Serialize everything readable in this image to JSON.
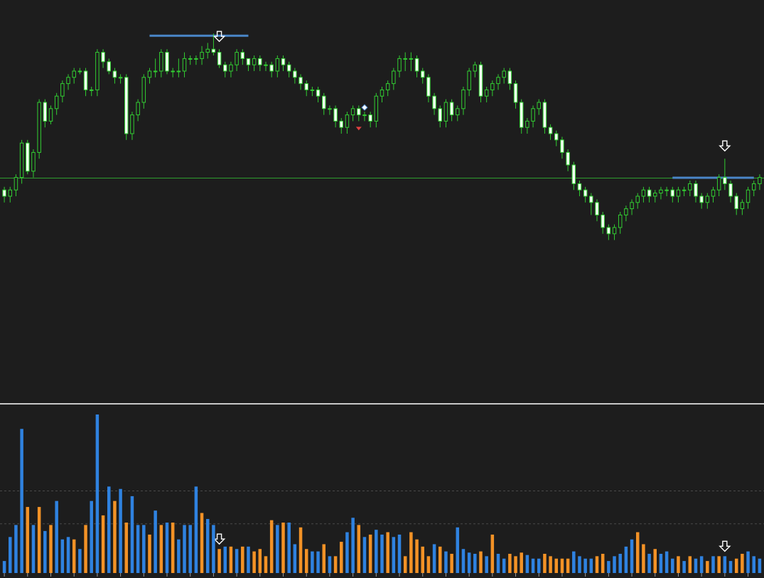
{
  "colors": {
    "background": "#1d1d1d",
    "separator": "#c8c8c8",
    "candle_outline": "#32cd32",
    "candle_bull_fill": "#1d1d1d",
    "candle_bear_fill": "#f2fff2",
    "wick": "#32cd32",
    "price_line": "#2e9e2e",
    "resistance": "#4a86c8",
    "marker": "#ffffff",
    "volume_up": "#2f82e0",
    "volume_down": "#f39226",
    "volume_grid": "#4a4a4a"
  },
  "icons": {
    "top_markers": "down-arrow-icon",
    "volume_markers": "down-arrow-icon",
    "order_marker_buy": "diamond-icon",
    "order_marker_sell": "red-triangle-icon"
  },
  "chart_data": [
    {
      "type": "candlestick",
      "title": "",
      "xlabel": "",
      "ylabel": "",
      "ylim": [
        0,
        100
      ],
      "grid": false,
      "price_line_level": 45.8,
      "resistance_levels": [
        {
          "start_index": 25,
          "end_index": 42,
          "level": 91.3
        },
        {
          "start_index": 115,
          "end_index": 129,
          "level": 45.9
        }
      ],
      "marker_indices": [
        37,
        124
      ],
      "open": [
        42,
        40,
        42,
        46,
        57,
        48,
        54,
        70,
        64,
        68,
        72,
        76,
        78,
        80,
        80,
        74,
        74,
        86,
        83,
        80,
        78,
        78,
        60,
        66,
        70,
        78,
        80,
        80,
        86,
        80,
        80,
        80,
        84,
        84,
        84,
        86,
        87,
        86,
        82,
        80,
        82,
        86,
        84,
        82,
        84,
        82,
        82,
        80,
        84,
        82,
        80,
        78,
        76,
        74,
        74,
        72,
        68,
        68,
        64,
        62,
        66,
        68,
        66,
        66,
        64,
        72,
        74,
        76,
        80,
        84,
        84,
        84,
        80,
        78,
        72,
        68,
        64,
        70,
        66,
        68,
        74,
        80,
        82,
        72,
        74,
        76,
        78,
        80,
        76,
        70,
        62,
        64,
        68,
        70,
        62,
        60,
        58,
        54,
        50,
        44,
        42,
        40,
        38,
        34,
        30,
        28,
        30,
        34,
        36,
        38,
        40,
        42,
        40,
        41,
        42,
        42,
        40,
        42,
        42,
        44,
        40,
        38,
        40,
        42,
        46,
        44,
        40,
        36,
        38,
        42,
        44
      ],
      "close": [
        40,
        42,
        46,
        57,
        48,
        54,
        70,
        64,
        68,
        72,
        76,
        78,
        80,
        80,
        74,
        74,
        86,
        83,
        80,
        78,
        78,
        60,
        66,
        70,
        78,
        80,
        80,
        86,
        80,
        80,
        80,
        84,
        84,
        84,
        86,
        87,
        86,
        82,
        80,
        82,
        86,
        84,
        82,
        84,
        82,
        82,
        80,
        84,
        82,
        80,
        78,
        76,
        74,
        74,
        72,
        68,
        68,
        64,
        62,
        66,
        68,
        66,
        66,
        64,
        72,
        74,
        76,
        80,
        84,
        84,
        84,
        80,
        78,
        72,
        68,
        64,
        70,
        66,
        68,
        74,
        80,
        82,
        72,
        74,
        76,
        78,
        80,
        76,
        70,
        62,
        64,
        68,
        70,
        62,
        60,
        58,
        54,
        50,
        44,
        42,
        40,
        38,
        34,
        30,
        28,
        30,
        34,
        36,
        38,
        40,
        42,
        40,
        41,
        42,
        42,
        40,
        42,
        42,
        44,
        40,
        38,
        40,
        42,
        46,
        44,
        40,
        36,
        38,
        42,
        44,
        46
      ],
      "high": [
        43,
        43,
        47,
        58,
        58,
        55,
        71,
        71,
        69,
        73,
        77,
        79,
        81,
        81,
        81,
        75,
        87,
        87,
        84,
        81,
        79,
        79,
        67,
        71,
        79,
        81,
        84,
        87,
        87,
        81,
        84,
        86,
        85,
        85,
        88,
        89,
        92,
        87,
        83,
        83,
        87,
        87,
        83,
        85,
        85,
        83,
        83,
        85,
        85,
        83,
        81,
        79,
        77,
        75,
        75,
        73,
        69,
        69,
        65,
        67,
        69,
        69,
        67,
        67,
        73,
        75,
        77,
        81,
        85,
        86,
        86,
        85,
        81,
        79,
        73,
        69,
        71,
        71,
        69,
        75,
        81,
        83,
        83,
        75,
        77,
        79,
        81,
        81,
        77,
        71,
        65,
        69,
        71,
        71,
        63,
        61,
        59,
        55,
        51,
        45,
        43,
        41,
        39,
        35,
        31,
        31,
        35,
        37,
        39,
        41,
        43,
        43,
        42,
        43,
        43,
        43,
        43,
        43,
        45,
        45,
        41,
        41,
        43,
        47,
        52,
        45,
        41,
        39,
        43,
        45,
        47
      ],
      "low": [
        38,
        38,
        40,
        44,
        47,
        46,
        52,
        62,
        63,
        66,
        70,
        74,
        76,
        79,
        72,
        72,
        72,
        81,
        79,
        76,
        76,
        58,
        58,
        64,
        68,
        76,
        78,
        78,
        79,
        78,
        78,
        78,
        82,
        82,
        82,
        84,
        85,
        81,
        78,
        78,
        80,
        82,
        80,
        80,
        80,
        80,
        78,
        78,
        80,
        78,
        76,
        74,
        72,
        72,
        70,
        66,
        66,
        62,
        60,
        60,
        64,
        64,
        64,
        62,
        62,
        70,
        72,
        74,
        78,
        80,
        80,
        78,
        76,
        70,
        66,
        62,
        62,
        64,
        64,
        66,
        72,
        78,
        70,
        70,
        72,
        74,
        76,
        74,
        68,
        60,
        60,
        62,
        66,
        60,
        58,
        56,
        52,
        48,
        42,
        40,
        38,
        34,
        32,
        28,
        26,
        26,
        28,
        32,
        34,
        36,
        38,
        38,
        38,
        39,
        40,
        38,
        38,
        40,
        40,
        38,
        36,
        36,
        38,
        40,
        42,
        38,
        34,
        34,
        36,
        40,
        42
      ],
      "volume": [
        10,
        30,
        40,
        120,
        55,
        40,
        55,
        35,
        40,
        60,
        28,
        30,
        28,
        20,
        40,
        60,
        132,
        48,
        72,
        60,
        70,
        42,
        64,
        40,
        40,
        32,
        52,
        40,
        42,
        42,
        28,
        40,
        40,
        72,
        50,
        45,
        40,
        20,
        22,
        22,
        20,
        22,
        22,
        18,
        20,
        14,
        44,
        40,
        42,
        42,
        24,
        38,
        20,
        18,
        18,
        24,
        14,
        14,
        26,
        34,
        46,
        40,
        30,
        32,
        36,
        32,
        34,
        30,
        32,
        14,
        34,
        28,
        22,
        14,
        24,
        22,
        18,
        16,
        38,
        20,
        17,
        16,
        18,
        14,
        32,
        16,
        12,
        16,
        14,
        17,
        15,
        12,
        12,
        16,
        14,
        12,
        12,
        12,
        18,
        14,
        12,
        12,
        14,
        16,
        10,
        14,
        16,
        22,
        28,
        34,
        24,
        16,
        20,
        16,
        18,
        12,
        14,
        10,
        14,
        12,
        14,
        10,
        14,
        14,
        14,
        10,
        12,
        16,
        18,
        14,
        12
      ],
      "volume_direction": [
        "up",
        "up",
        "up",
        "up",
        "down",
        "up",
        "down",
        "up",
        "down",
        "up",
        "up",
        "up",
        "down",
        "up",
        "down",
        "up",
        "up",
        "down",
        "up",
        "down",
        "up",
        "down",
        "up",
        "up",
        "up",
        "down",
        "up",
        "down",
        "up",
        "down",
        "up",
        "up",
        "up",
        "up",
        "down",
        "up",
        "up",
        "down",
        "up",
        "down",
        "up",
        "down",
        "up",
        "down",
        "down",
        "down",
        "down",
        "up",
        "down",
        "up",
        "up",
        "down",
        "down",
        "up",
        "up",
        "down",
        "up",
        "down",
        "down",
        "up",
        "up",
        "down",
        "up",
        "down",
        "up",
        "up",
        "down",
        "up",
        "up",
        "down",
        "down",
        "down",
        "down",
        "down",
        "up",
        "down",
        "up",
        "down",
        "up",
        "up",
        "up",
        "up",
        "down",
        "up",
        "down",
        "up",
        "up",
        "down",
        "down",
        "down",
        "up",
        "up",
        "up",
        "down",
        "down",
        "down",
        "down",
        "down",
        "up",
        "up",
        "up",
        "up",
        "down",
        "down",
        "up",
        "up",
        "up",
        "up",
        "up",
        "down",
        "down",
        "up",
        "down",
        "up",
        "up",
        "up",
        "down",
        "up",
        "down",
        "up",
        "up",
        "down",
        "up",
        "down",
        "up",
        "up",
        "down",
        "down",
        "up",
        "up",
        "up"
      ]
    }
  ]
}
